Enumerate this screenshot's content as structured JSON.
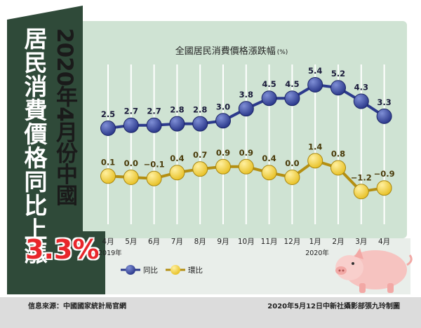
{
  "headline": {
    "year_month": "2020年4月份中國",
    "subject": "居民消費價格同比上漲",
    "value": "3.3%"
  },
  "footer": {
    "source": "信息來源：中國國家統計局官網",
    "credit": "2020年5月12日中新社攝影部張九玲制圖"
  },
  "colors": {
    "dark_green": "#2f4a39",
    "panel_green": "#cfe3d3",
    "series_yoy": "#2c3a8c",
    "series_mom": "#e8c22a",
    "accent_red": "#e8262b"
  },
  "chart_data": {
    "type": "line",
    "title": "全國居民消費價格漲跌幅",
    "unit": "(%)",
    "categories": [
      "4月",
      "5月",
      "6月",
      "7月",
      "8月",
      "9月",
      "10月",
      "11月",
      "12月",
      "1月",
      "2月",
      "3月",
      "4月"
    ],
    "year_labels": [
      {
        "index": 0,
        "text": "2019年"
      },
      {
        "index": 9,
        "text": "2020年"
      }
    ],
    "series": [
      {
        "name": "同比",
        "values": [
          2.5,
          2.7,
          2.7,
          2.8,
          2.8,
          3.0,
          3.8,
          4.5,
          4.5,
          5.4,
          5.2,
          4.3,
          3.3
        ],
        "labels": [
          "2.5",
          "2.7",
          "2.7",
          "2.8",
          "2.8",
          "3.0",
          "3.8",
          "4.5",
          "4.5",
          "5.4",
          "5.2",
          "4.3",
          "3.3"
        ]
      },
      {
        "name": "環比",
        "values": [
          0.1,
          0.0,
          -0.1,
          0.4,
          0.7,
          0.9,
          0.9,
          0.4,
          0.0,
          1.4,
          0.8,
          -1.2,
          -0.9
        ],
        "labels": [
          "0.1",
          "0.0",
          "−0.1",
          "0.4",
          "0.7",
          "0.9",
          "0.9",
          "0.4",
          "0.0",
          "1.4",
          "0.8",
          "−1.2",
          "−0.9"
        ]
      }
    ],
    "grid": true,
    "legend": "bottom-left"
  }
}
